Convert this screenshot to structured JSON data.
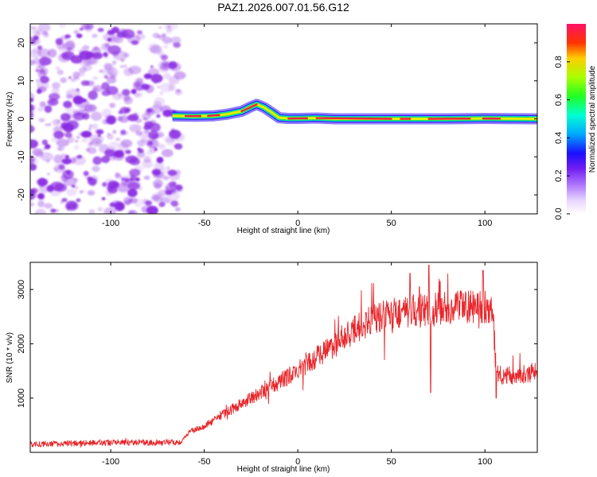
{
  "title": "PAZ1.2026.007.01.56.G12",
  "colors": {
    "trace": "#e8262a",
    "axis": "#000000",
    "noise": "#8a2be2",
    "ridge_outer": "#3311ff",
    "ridge_mid": "#22dd55",
    "ridge_core": "#ee2244"
  },
  "chart_data": [
    {
      "type": "heatmap",
      "name": "spectrogram",
      "xlabel": "Height of straight line (km)",
      "ylabel": "Frequency (Hz)",
      "xlim": [
        -143,
        128
      ],
      "ylim": [
        -25,
        25
      ],
      "x_ticks": [
        -100,
        -50,
        0,
        50,
        100
      ],
      "x_tick_labels": [
        "-100",
        "-50",
        "0",
        "50",
        "100"
      ],
      "y_ticks": [
        -20,
        -10,
        0,
        10,
        20
      ],
      "y_tick_labels": [
        "-20",
        "-10",
        "0",
        "10",
        "20"
      ],
      "noise_region_x": [
        -143,
        -66
      ],
      "ridge": {
        "x": [
          -67,
          -55,
          -45,
          -38,
          -30,
          -25,
          -22,
          -18,
          -15,
          -12,
          -10,
          -5,
          0,
          10,
          20,
          40,
          60,
          80,
          100,
          128
        ],
        "freq": [
          0.8,
          0.7,
          0.8,
          1.2,
          2.0,
          3.2,
          3.8,
          3.0,
          2.0,
          1.0,
          0.3,
          0.1,
          0.1,
          0.2,
          0.0,
          0.0,
          0.0,
          0.0,
          0.1,
          0.0
        ]
      },
      "colorbar": {
        "label": "Normalized spectral amplitude",
        "range": [
          0,
          1
        ],
        "ticks": [
          0.0,
          0.2,
          0.4,
          0.6,
          0.8
        ],
        "tick_labels": [
          "0.0",
          "0.2",
          "0.4",
          "0.6",
          "0.8"
        ]
      }
    },
    {
      "type": "line",
      "name": "snr",
      "xlabel": "Height of straight line (km)",
      "ylabel": "SNR (10 * v/v)",
      "xlim": [
        -143,
        128
      ],
      "ylim": [
        0,
        3500
      ],
      "x_ticks": [
        -100,
        -50,
        0,
        50,
        100
      ],
      "x_tick_labels": [
        "-100",
        "-50",
        "0",
        "50",
        "100"
      ],
      "y_ticks": [
        1000,
        2000,
        3000
      ],
      "y_tick_labels": [
        "1000",
        "2000",
        "3000"
      ],
      "envelope": {
        "x": [
          -143,
          -100,
          -80,
          -62,
          -58,
          -50,
          -40,
          -30,
          -20,
          -10,
          0,
          10,
          20,
          30,
          40,
          50,
          60,
          70,
          80,
          90,
          100,
          104,
          106,
          110,
          128
        ],
        "y": [
          150,
          180,
          180,
          190,
          380,
          480,
          700,
          900,
          1100,
          1300,
          1500,
          1750,
          2000,
          2250,
          2450,
          2550,
          2600,
          2620,
          2650,
          2680,
          2700,
          2700,
          1500,
          1400,
          1480
        ]
      },
      "spikes": [
        {
          "x": 60,
          "y": 3300
        },
        {
          "x": 65,
          "y": 3050
        },
        {
          "x": 70,
          "y": 3450
        },
        {
          "x": 71,
          "y": 1100
        },
        {
          "x": 76,
          "y": 3150
        },
        {
          "x": 99,
          "y": 3350
        },
        {
          "x": 106,
          "y": 1000
        }
      ]
    }
  ]
}
